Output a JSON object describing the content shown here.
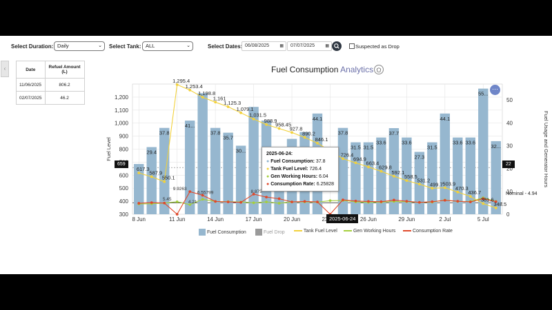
{
  "filters": {
    "duration_label": "Select Duration:",
    "duration_value": "Daily",
    "tank_label": "Select Tank:",
    "tank_value": "ALL",
    "dates_label": "Select Dates:",
    "date_from": "06/08/2025",
    "date_to": "07/07/2025",
    "suspected_label": "Suspected as Drop"
  },
  "refuel_table": {
    "headers": [
      "Date",
      "Refuel Amount (L)"
    ],
    "rows": [
      [
        "11/06/2025",
        "806.2"
      ],
      [
        "02/07/2025",
        "46.2"
      ]
    ]
  },
  "chart_title": {
    "main": "Fuel Consumption",
    "accent": "Analytics"
  },
  "crosshair": {
    "left_value": "659",
    "right_value": "22",
    "x_label": "2025-06-24"
  },
  "tooltip": {
    "date": "2025-06-24:",
    "rows": [
      {
        "label": "Fuel Consumption:",
        "value": "37.8",
        "color": "#8fb3cd"
      },
      {
        "label": "Tank Fuel Level:",
        "value": "726.4",
        "color": "#f2d13a"
      },
      {
        "label": "Gen Working Hours:",
        "value": "6.04",
        "color": "#a5cf3c"
      },
      {
        "label": "Consumption Rate:",
        "value": "6.25828",
        "color": "#e0492b"
      }
    ]
  },
  "nominal_label": "Nominal - 4.94",
  "legend": [
    {
      "label": "Fuel Consumption",
      "color": "#96b7cf",
      "kind": "rect"
    },
    {
      "label": "Fuel Drop",
      "color": "#9a9a9a",
      "kind": "rect"
    },
    {
      "label": "Tank Fuel Level",
      "color": "#f2d13a",
      "kind": "line"
    },
    {
      "label": "Gen Working Hours",
      "color": "#a5cf3c",
      "kind": "line"
    },
    {
      "label": "Consumption Rate",
      "color": "#e0492b",
      "kind": "line"
    }
  ],
  "chart_data": {
    "type": "bar",
    "ylabel": "Fuel Level",
    "y2label": "Fuel Usage and Generator Hours",
    "ylim": [
      300,
      1300
    ],
    "y_ticks": [
      "300",
      "400",
      "500",
      "600",
      "700",
      "800",
      "900",
      "1,000",
      "1,100",
      "1,200"
    ],
    "y2lim": [
      0,
      57
    ],
    "y2_ticks": [
      "0",
      "10",
      "20",
      "30",
      "40",
      "50"
    ],
    "x_tick_labels": [
      "8 Jun",
      "11 Jun",
      "14 Jun",
      "17 Jun",
      "20 Jun",
      "23 Jun",
      "26 Jun",
      "29 Jun",
      "2 Jul",
      "5 Jul"
    ],
    "categories": [
      "06-08",
      "06-09",
      "06-10",
      "06-11",
      "06-12",
      "06-13",
      "06-14",
      "06-15",
      "06-16",
      "06-17",
      "06-18",
      "06-19",
      "06-20",
      "06-21",
      "06-22",
      "06-23",
      "06-24",
      "06-25",
      "06-26",
      "06-27",
      "06-28",
      "06-29",
      "06-30",
      "07-01",
      "07-02",
      "07-03",
      "07-04",
      "07-05",
      "07-06"
    ],
    "series": [
      {
        "name": "Fuel Consumption",
        "values": [
          22,
          29.4,
          37.8,
          0,
          41,
          53,
          37.8,
          35.7,
          30,
          47,
          41,
          28,
          33,
          36,
          44.1,
          0,
          37.8,
          31.5,
          31.5,
          33.6,
          37.7,
          33.6,
          27.3,
          31.5,
          44.1,
          33.6,
          33.6,
          55,
          32
        ],
        "labels": [
          "",
          "29.4",
          "37.8",
          "",
          "41...",
          "",
          "37.8",
          "35.7",
          "30...",
          "",
          "",
          "",
          "",
          "",
          "44.1",
          "",
          "37.8",
          "31.5",
          "31.5",
          "33.6",
          "37.7",
          "33.6",
          "27.3",
          "31.5",
          "44.1",
          "33.6",
          "33.6",
          "55...",
          "32..."
        ]
      },
      {
        "name": "Tank Fuel Level",
        "values": [
          617.3,
          587.9,
          550.1,
          1295.4,
          1253.4,
          1198.8,
          1161,
          1125.3,
          1079.1,
          1031.5,
          988.9,
          958.45,
          927.8,
          890.2,
          846.1,
          0,
          726.4,
          694.9,
          663.4,
          629.8,
          592.1,
          558.5,
          531.2,
          499.7,
          503.9,
          470.3,
          436.7,
          381.6,
          348.5
        ],
        "labels": [
          "617.3",
          "587.9",
          "550.1",
          "1,295.4",
          "1,253.4",
          "1,198.8",
          "1,161",
          "1,125.3",
          "1,079.1",
          "1,031.5",
          "988.9",
          "958.45",
          "927.8",
          "890.2",
          "846.1",
          "",
          "726.4",
          "694.9",
          "663.4",
          "629.8",
          "592.1",
          "558.5",
          "531.2",
          "499.7",
          "503.9",
          "470.3",
          "436.7",
          "381.6",
          "348.5"
        ]
      },
      {
        "name": "Consumption Rate",
        "values": [
          4.8,
          5.1,
          4.9,
          0,
          9.9,
          8.3,
          5.6,
          5.4,
          5.2,
          8.8,
          7.5,
          6.8,
          5.4,
          5.6,
          5.4,
          0,
          6.3,
          5.8,
          5.6,
          5.5,
          6.2,
          5.7,
          5.2,
          5.5,
          6.1,
          5.7,
          5.4,
          6.8,
          5.5
        ]
      },
      {
        "name": "Gen Working Hours",
        "values": [
          4.5,
          4.6,
          4.9,
          5.45,
          4.21,
          6.55,
          5.6,
          5.5,
          5.36,
          5.0,
          5.4,
          4.8,
          5.4,
          5.4,
          5.3,
          5.94,
          6.04,
          5.4,
          5.2,
          5.3,
          5.6,
          5.5,
          5.2,
          5.3,
          6.2,
          5.6,
          5.6,
          7.2,
          5.6
        ]
      }
    ],
    "point_labels": [
      "9.9263",
      "6.55799",
      "8.875",
      "4.21",
      "5.45"
    ]
  }
}
